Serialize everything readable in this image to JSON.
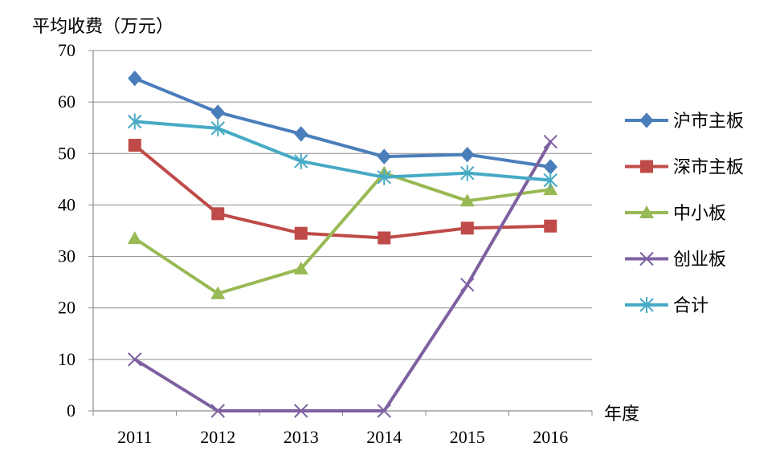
{
  "chart_data": {
    "type": "line",
    "ylabel": "平均收费（万元）",
    "xlabel": "年度",
    "categories": [
      "2011",
      "2012",
      "2013",
      "2014",
      "2015",
      "2016"
    ],
    "ylim": [
      0,
      70
    ],
    "yticks": [
      0,
      10,
      20,
      30,
      40,
      50,
      60,
      70
    ],
    "grid": true,
    "legend_position": "right",
    "series": [
      {
        "name": "沪市主板",
        "values": [
          64.6,
          58.0,
          53.8,
          49.4,
          49.8,
          47.4
        ],
        "color": "#4a7ebb",
        "marker": "diamond"
      },
      {
        "name": "深市主板",
        "values": [
          51.6,
          38.3,
          34.5,
          33.6,
          35.5,
          35.9
        ],
        "color": "#be4b48",
        "marker": "square"
      },
      {
        "name": "中小板",
        "values": [
          33.5,
          22.8,
          27.6,
          46.2,
          40.8,
          43.0
        ],
        "color": "#98b954",
        "marker": "triangle"
      },
      {
        "name": "创业板",
        "values": [
          10.0,
          0.0,
          0.0,
          0.0,
          24.5,
          52.3
        ],
        "color": "#7d60a0",
        "marker": "x"
      },
      {
        "name": "合计",
        "values": [
          56.2,
          54.9,
          48.5,
          45.4,
          46.2,
          44.8
        ],
        "color": "#46aac5",
        "marker": "asterisk"
      }
    ]
  }
}
